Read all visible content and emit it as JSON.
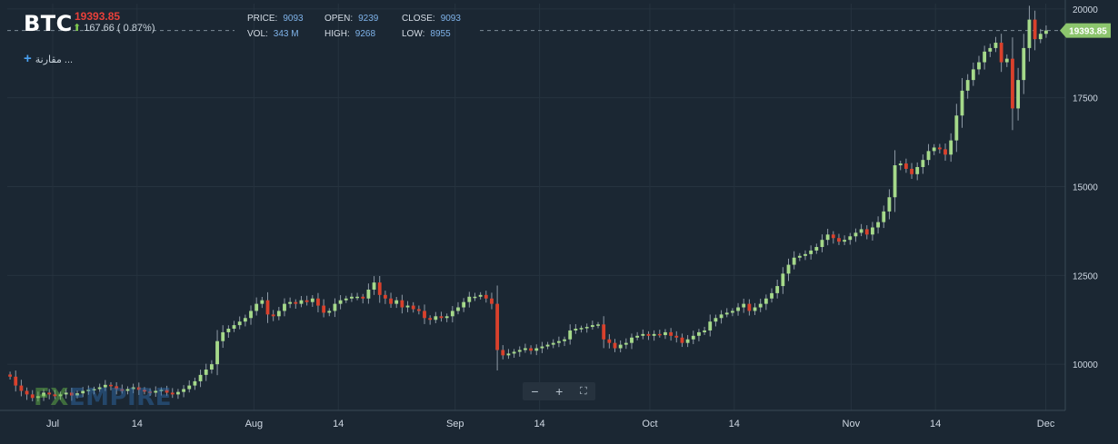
{
  "header": {
    "symbol": "BTC",
    "last_price": "19393.85",
    "change": "167.66 ( 0.87%)",
    "compare_label": "مقارنة ..."
  },
  "stats": [
    {
      "key": "PRICE:",
      "value": "9093"
    },
    {
      "key": "VOL:",
      "value": "343 M"
    },
    {
      "key": "OPEN:",
      "value": "9239"
    },
    {
      "key": "HIGH:",
      "value": "9268"
    },
    {
      "key": "CLOSE:",
      "value": "9093"
    },
    {
      "key": "LOW:",
      "value": "8955"
    }
  ],
  "toolbar": {
    "zoom_out": "−",
    "zoom_in": "+",
    "fullscreen": "⛶"
  },
  "watermark": {
    "part1": "FX",
    "part2": "EMPIRE"
  },
  "colors": {
    "background": "#1b2733",
    "grid": "#26333f",
    "up": "#a5d98a",
    "down": "#d9412c",
    "price_label": "#8cc56d",
    "axis_text": "#cfd8e3"
  },
  "chart_data": {
    "type": "candlestick",
    "title": "BTC",
    "y_ticks": [
      10000,
      12500,
      15000,
      17500,
      20000
    ],
    "ylim": [
      8700,
      20150
    ],
    "x_tick_labels": [
      "Jul",
      "14",
      "Aug",
      "14",
      "Sep",
      "14",
      "Oct",
      "14",
      "Nov",
      "14",
      "Dec"
    ],
    "x_tick_days": [
      0,
      13,
      31,
      44,
      62,
      75,
      92,
      105,
      123,
      136,
      153
    ],
    "x_start_day": -7,
    "x_end_day": 156,
    "current_price": 19393.85,
    "candle_closes": [
      9650,
      9400,
      9250,
      9150,
      9050,
      9100,
      9200,
      9150,
      9100,
      9150,
      9200,
      9120,
      9180,
      9250,
      9280,
      9300,
      9350,
      9420,
      9380,
      9300,
      9250,
      9300,
      9350,
      9280,
      9230,
      9200,
      9250,
      9280,
      9200,
      9150,
      9220,
      9300,
      9400,
      9520,
      9700,
      9850,
      10000,
      10650,
      10900,
      11000,
      11100,
      11200,
      11300,
      11500,
      11700,
      11800,
      11400,
      11350,
      11500,
      11700,
      11750,
      11700,
      11800,
      11750,
      11850,
      11650,
      11450,
      11500,
      11700,
      11800,
      11850,
      11900,
      11900,
      11850,
      12100,
      12300,
      11950,
      11850,
      11700,
      11800,
      11600,
      11650,
      11550,
      11500,
      11300,
      11250,
      11350,
      11300,
      11350,
      11500,
      11600,
      11750,
      11900,
      11900,
      11950,
      11850,
      11700,
      10400,
      10250,
      10300,
      10350,
      10400,
      10450,
      10380,
      10450,
      10500,
      10550,
      10600,
      10650,
      10700,
      10950,
      11000,
      11020,
      11050,
      11100,
      11120,
      10700,
      10600,
      10450,
      10550,
      10600,
      10750,
      10800,
      10850,
      10800,
      10850,
      10820,
      10900,
      10800,
      10750,
      10600,
      10700,
      10800,
      10900,
      10950,
      11200,
      11300,
      11400,
      11450,
      11500,
      11600,
      11700,
      11500,
      11600,
      11700,
      11850,
      12000,
      12200,
      12550,
      12800,
      13000,
      13050,
      13100,
      13200,
      13300,
      13500,
      13650,
      13550,
      13450,
      13500,
      13600,
      13700,
      13800,
      13650,
      13850,
      14000,
      14300,
      14700,
      15600,
      15650,
      15500,
      15350,
      15550,
      15750,
      16000,
      16100,
      16050,
      15900,
      16300,
      17000,
      17700,
      18000,
      18300,
      18500,
      18800,
      18900,
      19050,
      18500,
      18600,
      17200,
      18000,
      18900,
      19700,
      19150,
      19300,
      19393.85
    ],
    "note": "Daily candles; opens equal the previous close."
  }
}
